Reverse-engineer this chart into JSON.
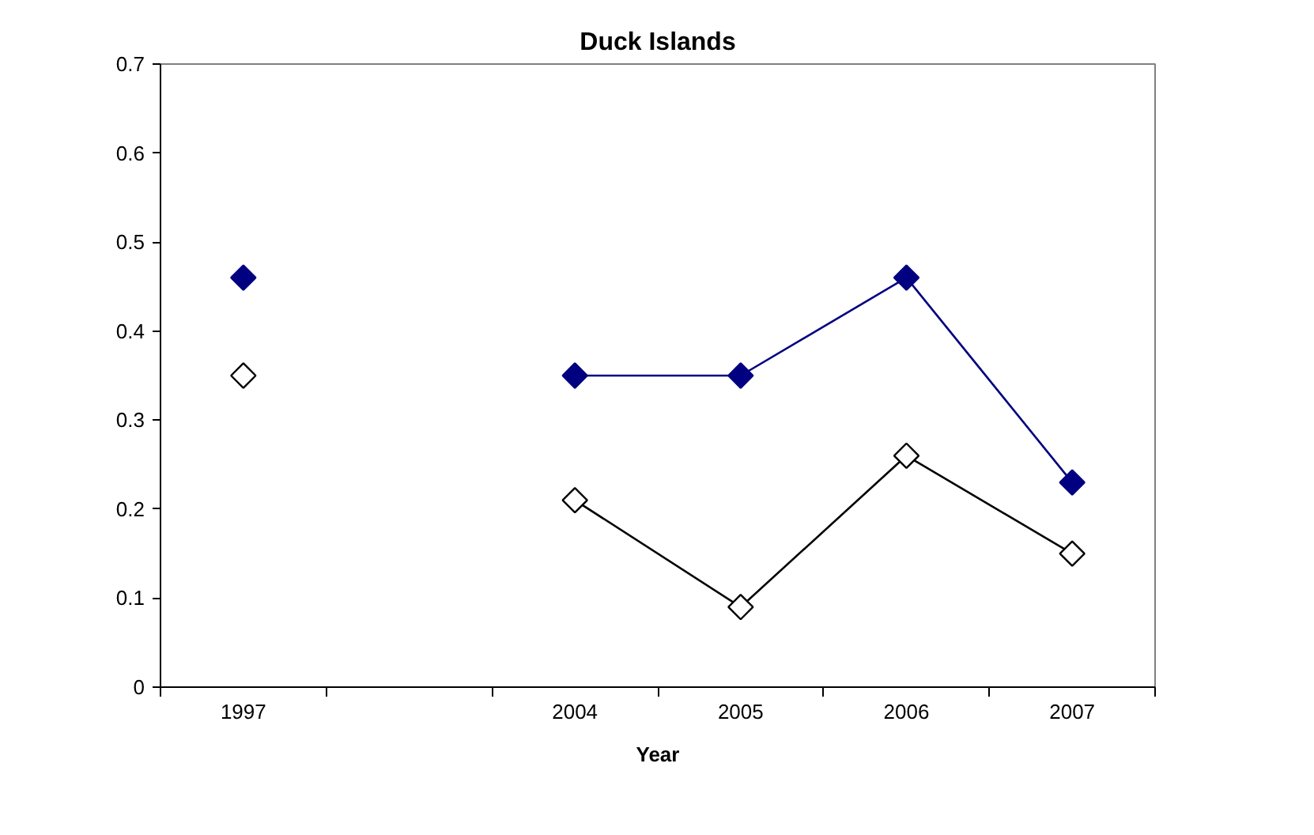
{
  "chart_data": {
    "type": "line",
    "title": "Duck Islands",
    "xlabel": "Year",
    "categories": [
      "1997",
      null,
      "2004",
      "2005",
      "2006",
      "2007"
    ],
    "ylim": [
      0,
      0.7
    ],
    "yticks": [
      0,
      0.1,
      0.2,
      0.3,
      0.4,
      0.5,
      0.6,
      0.7
    ],
    "marker": "diamond",
    "grid": false,
    "series": [
      {
        "color": "#000080",
        "values": [
          0.46,
          null,
          0.35,
          0.35,
          0.46,
          0.23
        ]
      },
      {
        "color": "#000000",
        "values": [
          0.35,
          null,
          0.21,
          0.09,
          0.26,
          0.15
        ]
      }
    ]
  }
}
